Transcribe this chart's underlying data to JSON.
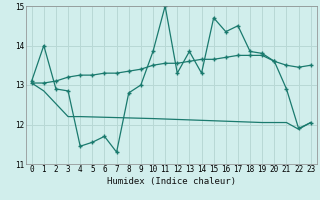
{
  "xlabel": "Humidex (Indice chaleur)",
  "background_color": "#d1eeec",
  "grid_color": "#b8d8d5",
  "line_color": "#1a7a6e",
  "xlim": [
    -0.5,
    23.5
  ],
  "ylim": [
    11,
    15
  ],
  "yticks": [
    11,
    12,
    13,
    14,
    15
  ],
  "xticks": [
    0,
    1,
    2,
    3,
    4,
    5,
    6,
    7,
    8,
    9,
    10,
    11,
    12,
    13,
    14,
    15,
    16,
    17,
    18,
    19,
    20,
    21,
    22,
    23
  ],
  "line1_x": [
    0,
    1,
    2,
    3,
    4,
    5,
    6,
    7,
    8,
    9,
    10,
    11,
    12,
    13,
    14,
    15,
    16,
    17,
    18,
    19,
    20,
    21,
    22,
    23
  ],
  "line1_y": [
    13.1,
    14.0,
    12.9,
    12.85,
    11.45,
    11.55,
    11.7,
    11.3,
    12.8,
    13.0,
    13.85,
    15.0,
    13.3,
    13.85,
    13.3,
    14.7,
    14.35,
    14.5,
    13.85,
    13.8,
    13.6,
    12.9,
    11.9,
    12.05
  ],
  "line2_x": [
    0,
    1,
    2,
    3,
    4,
    5,
    6,
    7,
    8,
    9,
    10,
    11,
    12,
    13,
    14,
    15,
    16,
    17,
    18,
    19,
    20,
    21,
    22,
    23
  ],
  "line2_y": [
    13.05,
    13.05,
    13.1,
    13.2,
    13.25,
    13.25,
    13.3,
    13.3,
    13.35,
    13.4,
    13.5,
    13.55,
    13.55,
    13.6,
    13.65,
    13.65,
    13.7,
    13.75,
    13.75,
    13.75,
    13.6,
    13.5,
    13.45,
    13.5
  ],
  "line3_x": [
    0,
    1,
    3,
    4,
    10,
    19,
    20,
    21,
    22,
    23
  ],
  "line3_y": [
    13.05,
    12.85,
    12.2,
    12.2,
    12.15,
    12.05,
    12.05,
    12.05,
    11.88,
    12.05
  ]
}
